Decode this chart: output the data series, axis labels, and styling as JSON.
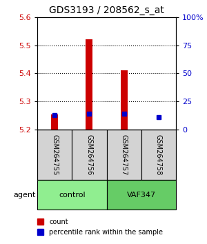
{
  "title": "GDS3193 / 208562_s_at",
  "samples": [
    "GSM264755",
    "GSM264756",
    "GSM264757",
    "GSM264758"
  ],
  "groups": [
    "control",
    "control",
    "VAF347",
    "VAF347"
  ],
  "group_labels": [
    "control",
    "VAF347"
  ],
  "group_colors": [
    "#90EE90",
    "#4CBB47"
  ],
  "bar_bottom": 5.2,
  "red_tops": [
    5.255,
    5.52,
    5.41,
    5.2
  ],
  "red_bottoms": [
    5.2,
    5.2,
    5.2,
    5.197
  ],
  "blue_values": [
    5.253,
    5.258,
    5.258,
    5.245
  ],
  "ylim": [
    5.2,
    5.6
  ],
  "yticks_left": [
    5.2,
    5.3,
    5.4,
    5.5,
    5.6
  ],
  "yticks_right": [
    0,
    25,
    50,
    75,
    100
  ],
  "ytick_right_labels": [
    "0",
    "25",
    "50",
    "75",
    "100%"
  ],
  "left_color": "#cc0000",
  "right_color": "#0000cc",
  "grid_color": "#000000",
  "legend_red": "count",
  "legend_blue": "percentile rank within the sample"
}
